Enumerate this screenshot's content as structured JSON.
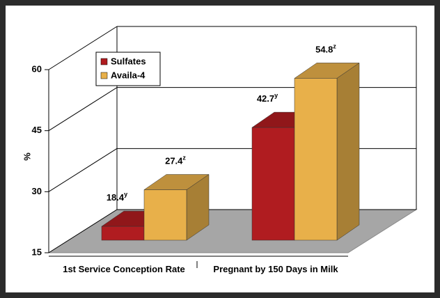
{
  "chart_data": {
    "type": "bar3d",
    "ylabel": "%",
    "categories": [
      "1st Service Conception Rate",
      "Pregnant by 150 Days in Milk"
    ],
    "series": [
      {
        "name": "Sulfates",
        "color": "#b01c20",
        "values": [
          18.4,
          42.7
        ],
        "letters": [
          "y",
          "y"
        ]
      },
      {
        "name": "Availa-4",
        "color": "#e8b04a",
        "values": [
          27.4,
          54.8
        ],
        "letters": [
          "z",
          "z"
        ]
      }
    ],
    "ylim": [
      15,
      60
    ],
    "yticks": [
      15,
      30,
      45,
      60
    ],
    "grid": true,
    "legend": "upper left"
  }
}
